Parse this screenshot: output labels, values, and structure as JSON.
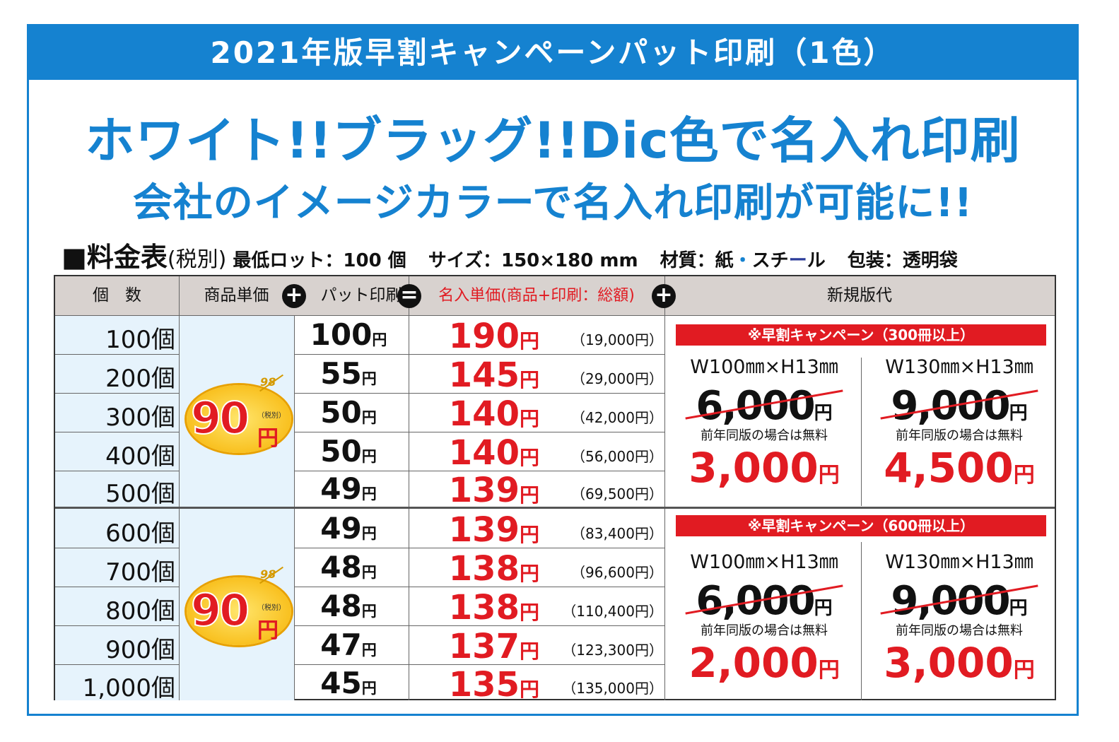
{
  "title": "2021年版早割キャンペーンパット印刷（1色）",
  "headline1": "ホワイト!!ブラッグ!!Dic色で名入れ印刷",
  "headline2": "会社のイメージカラーで名入れ印刷が可能に!!",
  "info": {
    "square": "■料金表",
    "tax": "(税別)",
    "lot": "最低ロット：100 個",
    "size": "サイズ：150×180 mm",
    "material_label": "材質：紙",
    "material_dot": "・",
    "material2": "スチ",
    "material_dash": "ー",
    "material3": "ル",
    "packaging": "包装：透明袋"
  },
  "colors": {
    "accent": "#1582d0",
    "red": "#e11b22",
    "header_bg": "#d8d2cf",
    "qty_bg": "#e6f3fc"
  },
  "table": {
    "headers": {
      "qty": "個　数",
      "unit_price": "商品単価",
      "pad_print": "パット印刷",
      "name_price": "名入単価(商品+印刷：総額)",
      "plate": "新規版代"
    },
    "operators": {
      "plus": "+",
      "equals": "="
    },
    "yen": "円",
    "badge": {
      "price": "90",
      "yen": "円",
      "tax": "（税別）",
      "old": "98"
    },
    "rows": [
      {
        "qty": "100個",
        "print": "100",
        "unit": "190",
        "total": "（19,000円）"
      },
      {
        "qty": "200個",
        "print": "55",
        "unit": "145",
        "total": "（29,000円）"
      },
      {
        "qty": "300個",
        "print": "50",
        "unit": "140",
        "total": "（42,000円）"
      },
      {
        "qty": "400個",
        "print": "50",
        "unit": "140",
        "total": "（56,000円）"
      },
      {
        "qty": "500個",
        "print": "49",
        "unit": "139",
        "total": "（69,500円）"
      },
      {
        "qty": "600個",
        "print": "49",
        "unit": "139",
        "total": "（83,400円）"
      },
      {
        "qty": "700個",
        "print": "48",
        "unit": "138",
        "total": "（96,600円）"
      },
      {
        "qty": "800個",
        "print": "48",
        "unit": "138",
        "total": "（110,400円）"
      },
      {
        "qty": "900個",
        "print": "47",
        "unit": "137",
        "total": "（123,300円）"
      },
      {
        "qty": "1,000個",
        "print": "45",
        "unit": "135",
        "total": "（135,000円）"
      }
    ],
    "plates": [
      {
        "campaign": "※早割キャンペーン（300冊以上）",
        "left": {
          "size": "W100㎜×H13㎜",
          "old": "6,000",
          "free": "前年同版の場合は無料",
          "new": "3,000"
        },
        "right": {
          "size": "W130㎜×H13㎜",
          "old": "9,000",
          "free": "前年同版の場合は無料",
          "new": "4,500"
        }
      },
      {
        "campaign": "※早割キャンペーン（600冊以上）",
        "left": {
          "size": "W100㎜×H13㎜",
          "old": "6,000",
          "free": "前年同版の場合は無料",
          "new": "2,000"
        },
        "right": {
          "size": "W130㎜×H13㎜",
          "old": "9,000",
          "free": "前年同版の場合は無料",
          "new": "3,000"
        }
      }
    ]
  }
}
